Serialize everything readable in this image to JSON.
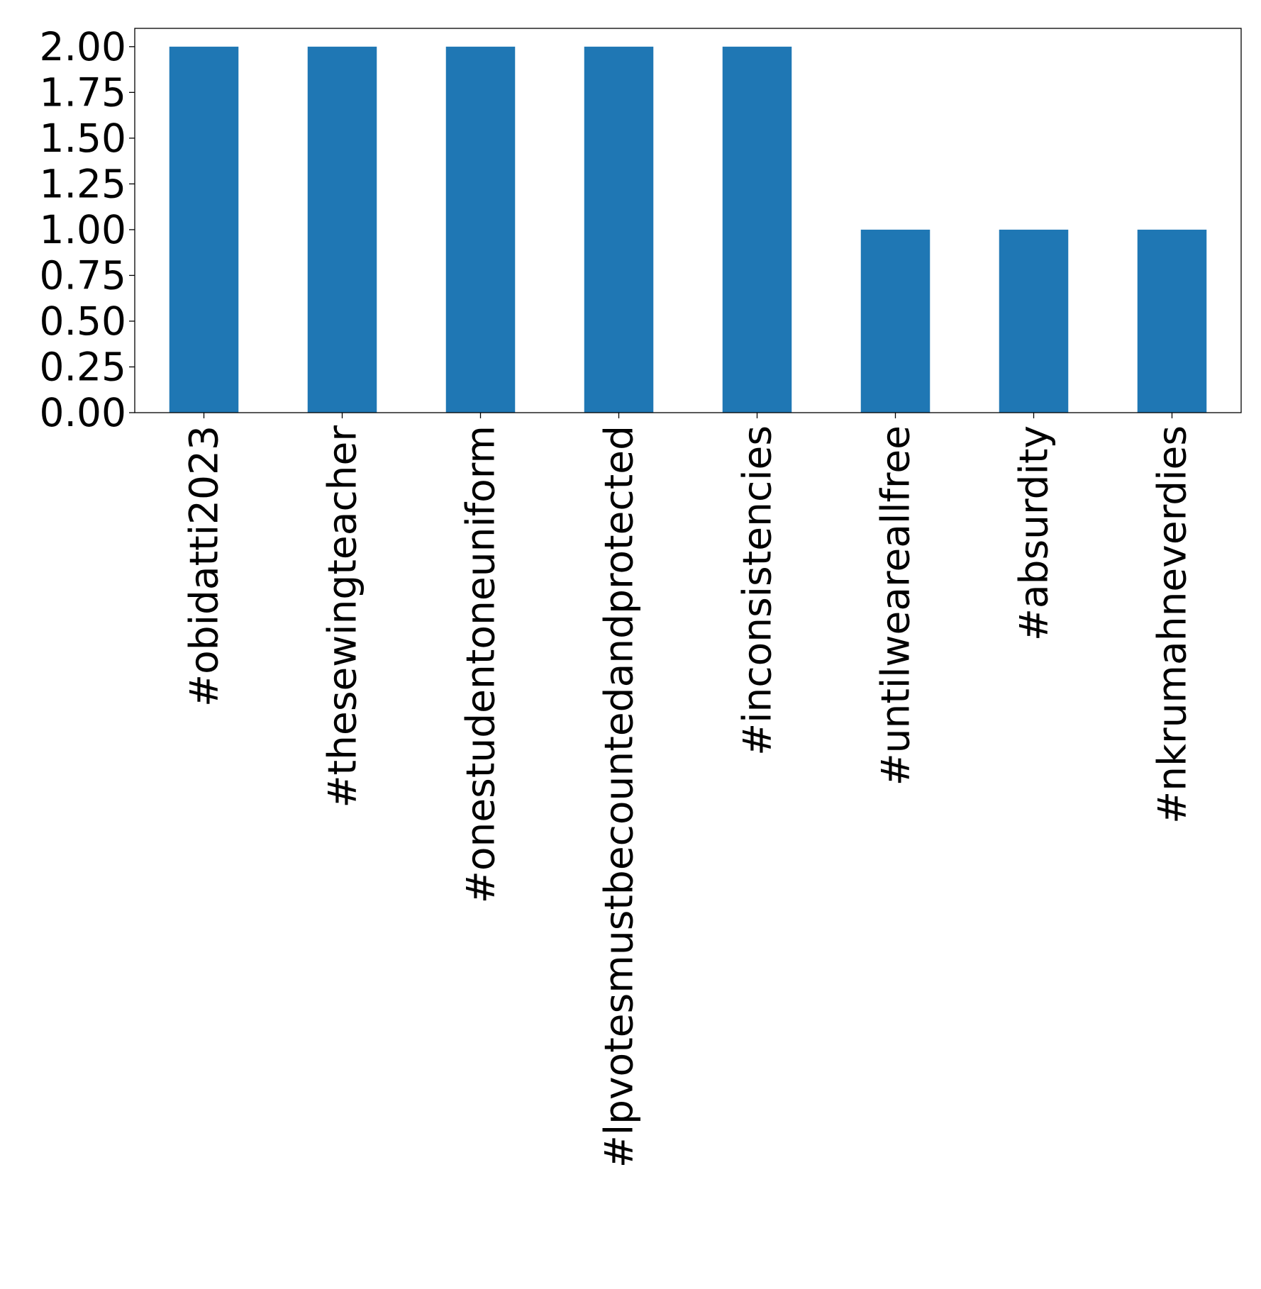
{
  "chart_data": {
    "type": "bar",
    "title": "",
    "xlabel": "",
    "ylabel": "",
    "categories": [
      "#obidatti2023",
      "#thesewingteacher",
      "#onestudentoneuniform",
      "#lpvotesmustbecountedandprotected",
      "#inconsistencies",
      "#untilweareallfree",
      "#absurdity",
      "#nkrumahneverdies"
    ],
    "values": [
      2,
      2,
      2,
      2,
      2,
      1,
      1,
      1
    ],
    "ylim": [
      0,
      2.1
    ],
    "yticks": [
      0,
      0.25,
      0.5,
      0.75,
      1.0,
      1.25,
      1.5,
      1.75,
      2.0
    ],
    "ytick_labels": [
      "0.00",
      "0.25",
      "0.50",
      "0.75",
      "1.00",
      "1.25",
      "1.50",
      "1.75",
      "2.00"
    ],
    "bar_color": "#1f77b4",
    "grid": false,
    "legend": "none"
  }
}
